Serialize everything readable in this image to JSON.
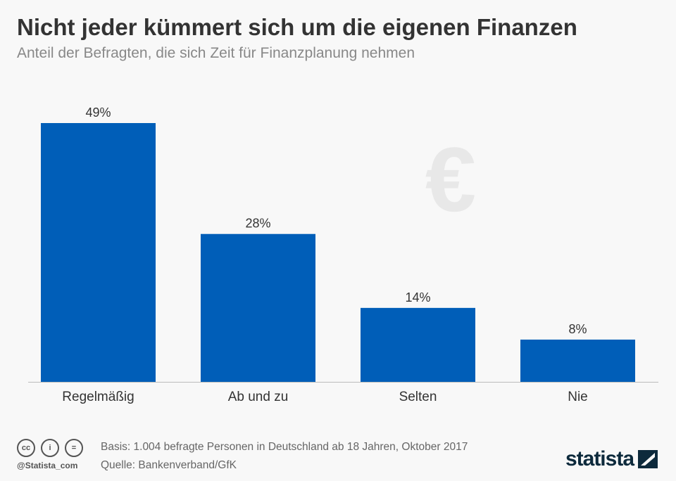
{
  "title": "Nicht jeder kümmert sich um die eigenen Finanzen",
  "subtitle": "Anteil der Befragten, die sich Zeit für Finanzplanung nehmen",
  "chart_data": {
    "type": "bar",
    "categories": [
      "Regelmäßig",
      "Ab und zu",
      "Selten",
      "Nie"
    ],
    "values": [
      49,
      28,
      14,
      8
    ],
    "labels": [
      "49%",
      "28%",
      "14%",
      "8%"
    ],
    "unit": "%",
    "ylim": [
      0,
      49
    ],
    "grid": false,
    "bar_color": "#005eb8"
  },
  "footer": {
    "basis": "Basis: 1.004 befragte Personen in Deutschland ab 18 Jahren, Oktober 2017",
    "source": "Quelle: Bankenverband/GfK",
    "handle": "@Statista_com",
    "logo": "statista",
    "license_icons": [
      "cc-icon",
      "by-icon",
      "nd-icon"
    ]
  }
}
